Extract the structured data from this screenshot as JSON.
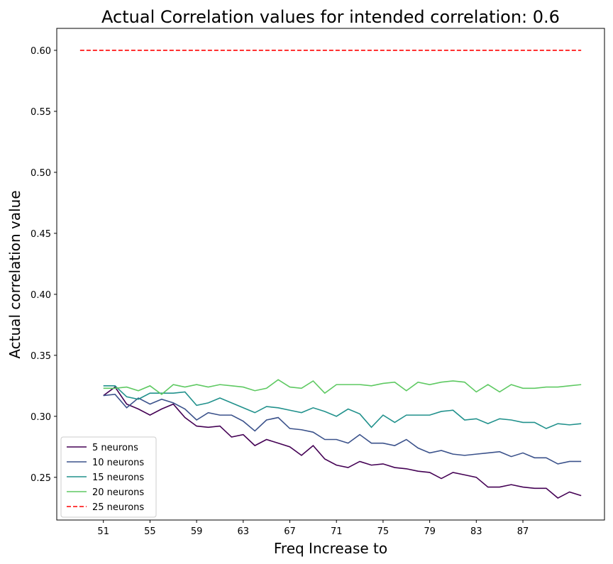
{
  "chart_data": {
    "type": "line",
    "title": "Actual Correlation values for intended correlation:  0.6",
    "xlabel": "Freq Increase to",
    "ylabel": "Actual correlation value",
    "x": [
      51,
      52,
      53,
      54,
      55,
      56,
      57,
      58,
      59,
      60,
      61,
      62,
      63,
      64,
      65,
      66,
      67,
      68,
      69,
      70,
      71,
      72,
      73,
      74,
      75,
      76,
      77,
      78,
      79,
      80,
      81,
      82,
      83,
      84,
      85,
      86,
      87,
      88,
      89,
      90,
      91,
      92
    ],
    "series": [
      {
        "name": "5 neurons",
        "color": "#440154",
        "values": [
          0.317,
          0.324,
          0.31,
          0.306,
          0.301,
          0.306,
          0.31,
          0.299,
          0.292,
          0.291,
          0.292,
          0.283,
          0.285,
          0.276,
          0.281,
          0.278,
          0.275,
          0.268,
          0.276,
          0.265,
          0.26,
          0.258,
          0.263,
          0.26,
          0.261,
          0.258,
          0.257,
          0.255,
          0.254,
          0.249,
          0.254,
          0.252,
          0.25,
          0.242,
          0.242,
          0.244,
          0.242,
          0.241,
          0.241,
          0.233,
          0.238,
          0.235
        ]
      },
      {
        "name": "10 neurons",
        "color": "#3b528b",
        "values": [
          0.317,
          0.318,
          0.307,
          0.315,
          0.31,
          0.314,
          0.311,
          0.306,
          0.297,
          0.303,
          0.301,
          0.301,
          0.296,
          0.288,
          0.297,
          0.299,
          0.29,
          0.289,
          0.287,
          0.281,
          0.281,
          0.278,
          0.285,
          0.278,
          0.278,
          0.276,
          0.281,
          0.274,
          0.27,
          0.272,
          0.269,
          0.268,
          0.269,
          0.27,
          0.271,
          0.267,
          0.27,
          0.266,
          0.266,
          0.261,
          0.263,
          0.263
        ]
      },
      {
        "name": "15 neurons",
        "color": "#21918c",
        "values": [
          0.325,
          0.325,
          0.316,
          0.314,
          0.319,
          0.319,
          0.319,
          0.32,
          0.309,
          0.311,
          0.315,
          0.311,
          0.307,
          0.303,
          0.308,
          0.307,
          0.305,
          0.303,
          0.307,
          0.304,
          0.3,
          0.306,
          0.302,
          0.291,
          0.301,
          0.295,
          0.301,
          0.301,
          0.301,
          0.304,
          0.305,
          0.297,
          0.298,
          0.294,
          0.298,
          0.297,
          0.295,
          0.295,
          0.29,
          0.294,
          0.293,
          0.294
        ]
      },
      {
        "name": "20 neurons",
        "color": "#5ec962",
        "values": [
          0.323,
          0.323,
          0.324,
          0.321,
          0.325,
          0.318,
          0.326,
          0.324,
          0.326,
          0.324,
          0.326,
          0.325,
          0.324,
          0.321,
          0.323,
          0.33,
          0.324,
          0.323,
          0.329,
          0.319,
          0.326,
          0.326,
          0.326,
          0.325,
          0.327,
          0.328,
          0.321,
          0.328,
          0.326,
          0.328,
          0.329,
          0.328,
          0.32,
          0.326,
          0.32,
          0.326,
          0.323,
          0.323,
          0.324,
          0.324,
          0.325,
          0.326
        ]
      },
      {
        "name": "25 neurons",
        "color": "#ff0000",
        "dashed": true,
        "x": [
          49,
          92
        ],
        "values": [
          0.6,
          0.6
        ]
      }
    ],
    "xlim": [
      47,
      94
    ],
    "ylim": [
      0.215,
      0.618
    ],
    "xticks": [
      51,
      55,
      59,
      63,
      67,
      71,
      75,
      79,
      83,
      87
    ],
    "yticks": [
      {
        "value": 0.25,
        "label": "0.25"
      },
      {
        "value": 0.3,
        "label": "0.30"
      },
      {
        "value": 0.35,
        "label": "0.35"
      },
      {
        "value": 0.4,
        "label": "0.40"
      },
      {
        "value": 0.45,
        "label": "0.45"
      },
      {
        "value": 0.5,
        "label": "0.50"
      },
      {
        "value": 0.55,
        "label": "0.55"
      },
      {
        "value": 0.6,
        "label": "0.60"
      }
    ],
    "legend": "lower left"
  }
}
